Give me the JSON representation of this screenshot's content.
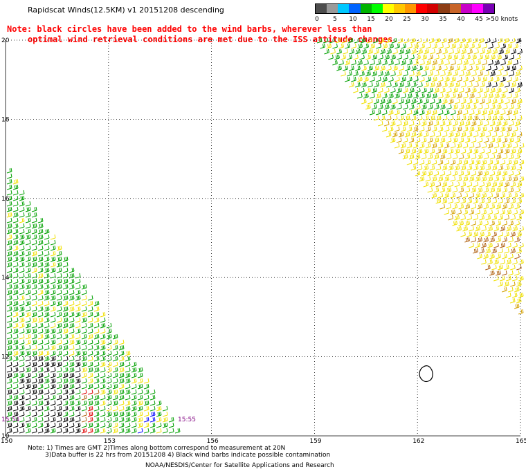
{
  "title": "Rapidscat Winds(12.5KM) v1 20151208 descending",
  "note_line1": "Note: black circles have been added to the wind barbs, wherever less than",
  "note_line2": "optimal wind retrieval conditions are met due to the ISS attitude changes.",
  "legend": {
    "unit_label": ">50 knots",
    "labels": [
      "0",
      "5",
      "10",
      "15",
      "20",
      "25",
      "30",
      "35",
      "40",
      "45"
    ],
    "colors": [
      "#4d4d4d",
      "#9a9a9a",
      "#00c8ff",
      "#0064ff",
      "#00b400",
      "#00ff00",
      "#ffff00",
      "#ffc800",
      "#ff9600",
      "#ff0000",
      "#d20000",
      "#8c3c14",
      "#c86428",
      "#c800c8",
      "#ff00ff",
      "#7800b4"
    ]
  },
  "axes": {
    "x_ticks": [
      "150",
      "153",
      "156",
      "159",
      "162",
      "165"
    ],
    "y_ticks": [
      "20",
      "18",
      "16",
      "14",
      "12",
      "10"
    ]
  },
  "time_labels": [
    "15:54",
    "15:55"
  ],
  "footer": {
    "line1": "Note: 1) Times are GMT 2)Times along bottom correspond to measurement at 20N",
    "line2": "3)Data buffer is 22 hrs from 20151208 4) Black wind barbs indicate possible contamination",
    "line3": "NOAA/NESDIS/Center for Satellite Applications and Research"
  },
  "colors": {
    "green": "#00a000",
    "yellow": "#f0e000",
    "orange": "#d4a000",
    "brown": "#b06010",
    "red": "#e00000",
    "black": "#000000",
    "blue": "#0000ff",
    "purple": "#800080"
  }
}
